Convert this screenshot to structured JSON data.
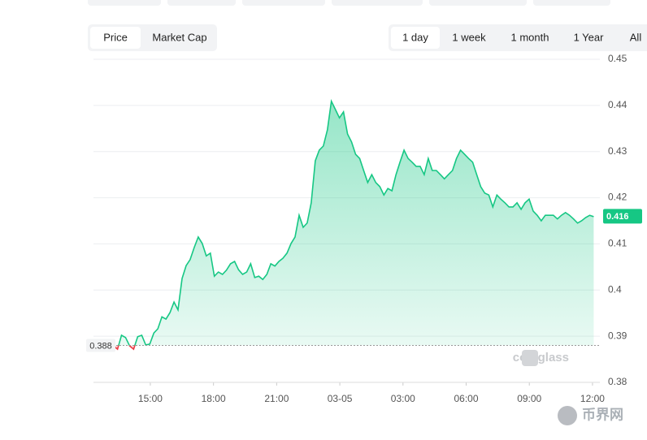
{
  "chart_data": {
    "type": "line",
    "tabs": [
      "Price",
      "Market Cap"
    ],
    "active_tab": 0,
    "ranges": [
      "1 day",
      "1 week",
      "1 month",
      "1 Year",
      "All"
    ],
    "active_range": 0,
    "watermark": "coinglass",
    "corner_watermark": "币界网",
    "color": "#16c784",
    "down_color": "#ea3943",
    "baseline": 0.388,
    "current_price": 0.416,
    "x": [
      795,
      806.5,
      818,
      829.5,
      841,
      852.5,
      864,
      875.5,
      887,
      898.5,
      910,
      921.5,
      933,
      944.5,
      956,
      967.5,
      979,
      990.5,
      1002,
      1013.5,
      1025,
      1036.5,
      1048,
      1059.5,
      1071,
      1082.5,
      1094,
      1105.5,
      1117,
      1128.5,
      1140,
      1151.5,
      1163,
      1174.5,
      1186,
      1197.5,
      1209,
      1220.5,
      1232,
      1243.5,
      1255,
      1266.5,
      1278,
      1289.5,
      1301,
      1312.5,
      1324,
      1335.5,
      1347,
      1358.5,
      1370,
      1381.5,
      1393,
      1404.5,
      1416,
      1427.5,
      1439,
      1450.5,
      1462,
      1473.5,
      1485,
      1496.5,
      1508,
      1519.5,
      1531,
      1542.5,
      1554,
      1565.5,
      1577,
      1588.5,
      1600,
      1611.5,
      1623,
      1634.5,
      1646,
      1657.5,
      1669,
      1680.5,
      1692,
      1703.5,
      1715,
      1726.5,
      1738,
      1749.5,
      1761,
      1772.5,
      1784,
      1795.5,
      1807,
      1818.5,
      1830,
      1841.5,
      1853,
      1864.5,
      1876,
      1887.5,
      1899,
      1910.5,
      1922,
      1933.5,
      1945,
      1956.5,
      1968,
      1979.5,
      1991,
      2002.5,
      2014,
      2025.5,
      2037,
      2048.5,
      2060,
      2071.5,
      2083,
      2094.5,
      2106,
      2117.5,
      2129,
      2140.5,
      2152,
      2163.5
    ],
    "values": [
      0.3879,
      0.3872,
      0.3902,
      0.3897,
      0.3879,
      0.3872,
      0.3899,
      0.3902,
      0.3881,
      0.3883,
      0.3907,
      0.3916,
      0.3942,
      0.3937,
      0.3951,
      0.3974,
      0.3957,
      0.4025,
      0.4053,
      0.4066,
      0.4092,
      0.4115,
      0.4101,
      0.4074,
      0.408,
      0.403,
      0.4039,
      0.4034,
      0.4043,
      0.4057,
      0.4062,
      0.4044,
      0.4034,
      0.4039,
      0.4057,
      0.4027,
      0.403,
      0.4023,
      0.4034,
      0.4057,
      0.4052,
      0.4062,
      0.4069,
      0.408,
      0.4101,
      0.4115,
      0.4162,
      0.4136,
      0.4145,
      0.4189,
      0.428,
      0.4303,
      0.4312,
      0.4347,
      0.4409,
      0.4391,
      0.4373,
      0.4386,
      0.4338,
      0.4321,
      0.4294,
      0.4285,
      0.4259,
      0.4233,
      0.425,
      0.4233,
      0.4224,
      0.4206,
      0.422,
      0.4215,
      0.425,
      0.4277,
      0.4303,
      0.4285,
      0.4277,
      0.4268,
      0.4268,
      0.425,
      0.4285,
      0.4259,
      0.4259,
      0.425,
      0.4241,
      0.425,
      0.4259,
      0.4285,
      0.4303,
      0.4294,
      0.4285,
      0.4277,
      0.425,
      0.4224,
      0.421,
      0.4206,
      0.418,
      0.4206,
      0.4197,
      0.4189,
      0.418,
      0.418,
      0.4189,
      0.4175,
      0.4189,
      0.4197,
      0.4171,
      0.4162,
      0.415,
      0.4162,
      0.4162,
      0.4162,
      0.4154,
      0.4162,
      0.4168,
      0.4162,
      0.4154,
      0.4145,
      0.415,
      0.4157,
      0.4162,
      0.4159
    ],
    "xlim": [
      738,
      2181
    ],
    "xticks": [
      {
        "value": 900,
        "label": "15:00"
      },
      {
        "value": 1080,
        "label": "18:00"
      },
      {
        "value": 1260,
        "label": "21:00"
      },
      {
        "value": 1440,
        "label": "03-05"
      },
      {
        "value": 1620,
        "label": "03:00"
      },
      {
        "value": 1800,
        "label": "06:00"
      },
      {
        "value": 1980,
        "label": "09:00"
      },
      {
        "value": 2160,
        "label": "12:00"
      }
    ],
    "ylim": [
      0.38,
      0.45
    ],
    "yticks": [
      0.38,
      0.39,
      0.4,
      0.41,
      0.42,
      0.43,
      0.44,
      0.45
    ],
    "grid": true
  }
}
